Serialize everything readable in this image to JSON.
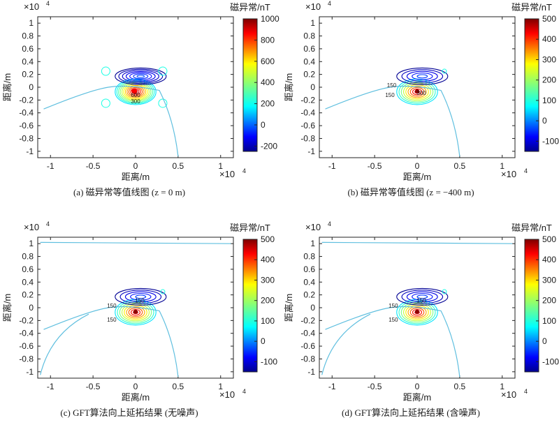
{
  "axis_common": {
    "ylabel": "距离/m",
    "xlabel": "距离/m",
    "exponent_label": "×10",
    "exponent_power": "4",
    "colorbar_title": "磁异常/nT"
  },
  "chart_data": [
    {
      "type": "contour",
      "caption": "(a) 磁异常等值线图 (z = 0 m)",
      "xlim": [
        -1.15,
        1.15
      ],
      "ylim": [
        -1.1,
        1.1
      ],
      "xticks": [
        -1,
        -0.5,
        0,
        0.5,
        1
      ],
      "xtick_labels": [
        "-1",
        "-0.5",
        "0",
        "0.5",
        "1"
      ],
      "yticks": [
        1,
        0.8,
        0.6,
        0.4,
        0.2,
        0,
        -0.2,
        -0.4,
        -0.6,
        -0.8,
        -1
      ],
      "ytick_labels": [
        "1",
        "0.8",
        "0.6",
        "0.4",
        "0.2",
        "0",
        "-0.2",
        "-0.4",
        "-0.6",
        "-0.8",
        "-1"
      ],
      "colorbar": {
        "range": [
          -250,
          1000
        ],
        "ticks": [
          1000,
          800,
          600,
          400,
          200,
          0,
          -200
        ],
        "tick_labels": [
          "1000",
          "800",
          "600",
          "400",
          "200",
          "0",
          "-200"
        ]
      },
      "peak_max": 1000,
      "peak_min": -250,
      "contour_labels": [
        "600",
        "300"
      ]
    },
    {
      "type": "contour",
      "caption": "(b) 磁异常等值线图 (z = −400 m)",
      "xlim": [
        -1.15,
        1.15
      ],
      "ylim": [
        -1.1,
        1.1
      ],
      "xticks": [
        -1,
        -0.5,
        0,
        0.5,
        1
      ],
      "xtick_labels": [
        "-1",
        "-0.5",
        "0",
        "0.5",
        "1"
      ],
      "yticks": [
        1,
        0.8,
        0.6,
        0.4,
        0.2,
        0,
        -0.2,
        -0.4,
        -0.6,
        -0.8,
        -1
      ],
      "ytick_labels": [
        "1",
        "0.8",
        "0.6",
        "0.4",
        "0.2",
        "0",
        "-0.2",
        "-0.4",
        "-0.6",
        "-0.8",
        "-1"
      ],
      "colorbar": {
        "range": [
          -150,
          500
        ],
        "ticks": [
          500,
          400,
          300,
          200,
          100,
          0,
          -100
        ],
        "tick_labels": [
          "500",
          "400",
          "300",
          "200",
          "100",
          "0",
          "-100"
        ]
      },
      "peak_max": 500,
      "peak_min": -150,
      "contour_labels": [
        "150",
        "300",
        "150"
      ]
    },
    {
      "type": "contour",
      "caption": "(c) GFT算法向上延拓结果 (无噪声)",
      "xlim": [
        -1.15,
        1.15
      ],
      "ylim": [
        -1.1,
        1.1
      ],
      "xticks": [
        -1,
        -0.5,
        0,
        0.5,
        1
      ],
      "xtick_labels": [
        "-1",
        "-0.5",
        "0",
        "0.5",
        "1"
      ],
      "yticks": [
        1,
        0.8,
        0.6,
        0.4,
        0.2,
        0,
        -0.2,
        -0.4,
        -0.6,
        -0.8,
        -1
      ],
      "ytick_labels": [
        "1",
        "0.8",
        "0.6",
        "0.4",
        "0.2",
        "0",
        "-0.2",
        "-0.4",
        "-0.6",
        "-0.8",
        "-1"
      ],
      "colorbar": {
        "range": [
          -150,
          500
        ],
        "ticks": [
          500,
          400,
          300,
          200,
          100,
          0,
          -100
        ],
        "tick_labels": [
          "500",
          "400",
          "300",
          "200",
          "100",
          "0",
          "-100"
        ]
      },
      "peak_max": 500,
      "peak_min": -150,
      "contour_labels": [
        "150",
        "150",
        "150"
      ]
    },
    {
      "type": "contour",
      "caption": "(d) GFT算法向上延拓结果 (含噪声)",
      "xlim": [
        -1.15,
        1.15
      ],
      "ylim": [
        -1.1,
        1.1
      ],
      "xticks": [
        -1,
        -0.5,
        0,
        0.5,
        1
      ],
      "xtick_labels": [
        "-1",
        "-0.5",
        "0",
        "0.5",
        "1"
      ],
      "yticks": [
        1,
        0.8,
        0.6,
        0.4,
        0.2,
        0,
        -0.2,
        -0.4,
        -0.6,
        -0.8,
        -1
      ],
      "ytick_labels": [
        "1",
        "0.8",
        "0.6",
        "0.4",
        "0.2",
        "0",
        "-0.2",
        "-0.4",
        "-0.6",
        "-0.8",
        "-1"
      ],
      "colorbar": {
        "range": [
          -150,
          500
        ],
        "ticks": [
          500,
          400,
          300,
          200,
          100,
          0,
          -100
        ],
        "tick_labels": [
          "500",
          "400",
          "300",
          "200",
          "100",
          "0",
          "-100"
        ]
      },
      "peak_max": 500,
      "peak_min": -150,
      "contour_labels": [
        "150",
        "150",
        "150"
      ]
    }
  ],
  "colormap": [
    "#00008f",
    "#0000ff",
    "#006fff",
    "#00dfff",
    "#4fffaf",
    "#bfff3f",
    "#ffdf00",
    "#ff6f00",
    "#ff0000",
    "#7f0000"
  ]
}
